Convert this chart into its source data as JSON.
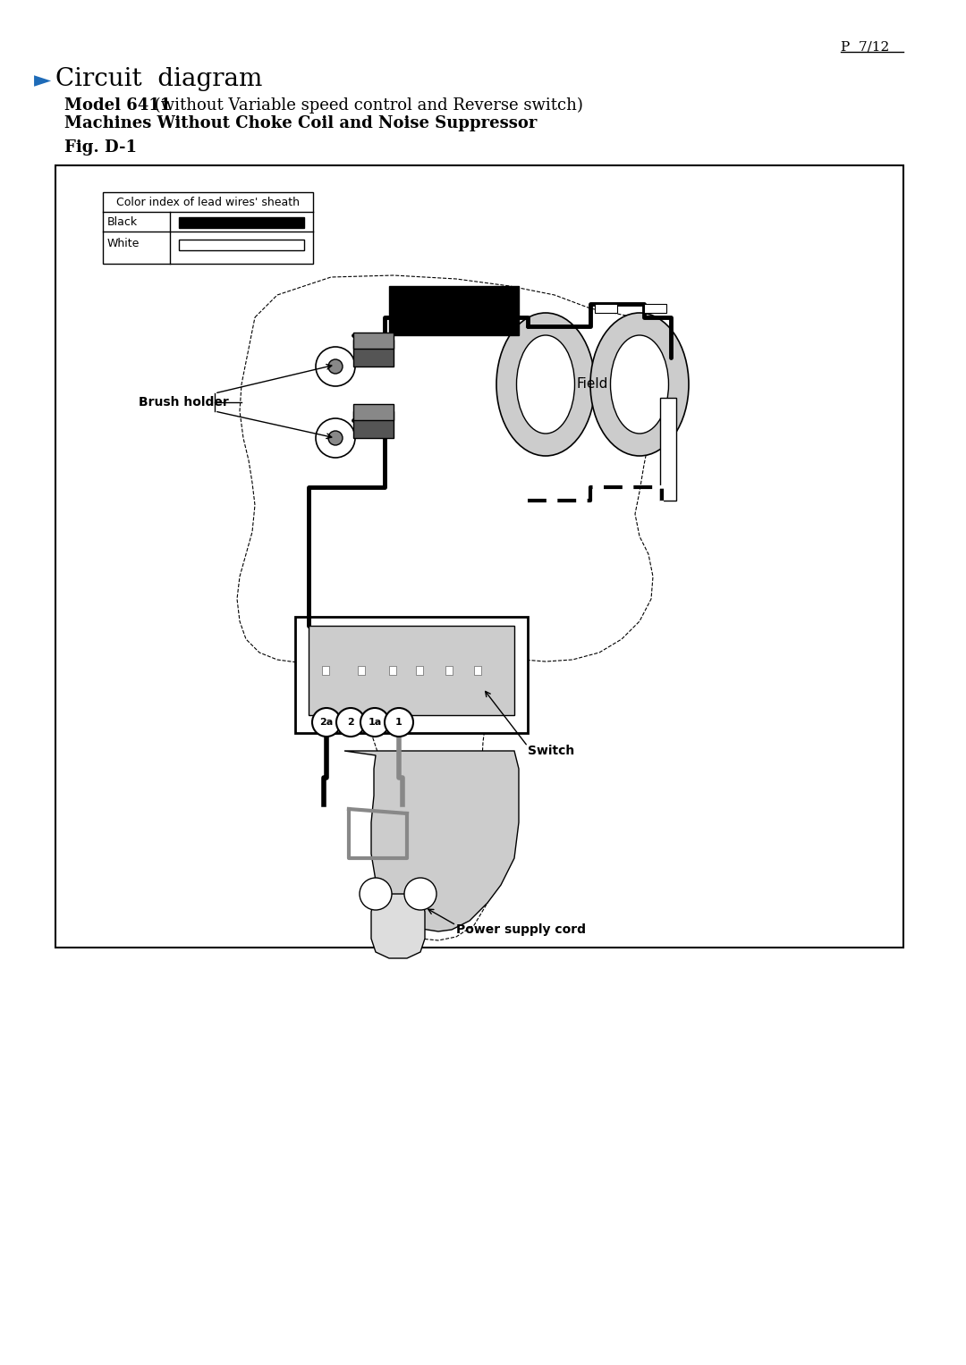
{
  "page_ref": "P  7/12",
  "title_arrow": "►",
  "title_arrow_color": "#1e6bb8",
  "title_text": "Circuit  diagram",
  "subtitle1_bold": "Model 6411",
  "subtitle1_normal": " (without Variable speed control and Reverse switch)",
  "subtitle2": "Machines Without Choke Coil and Noise Suppressor",
  "fig_label": "Fig. D-1",
  "legend_title": "Color index of lead wires' sheath",
  "legend_black": "Black",
  "legend_white": "White",
  "label_brush_holder": "Brush holder",
  "label_field": "Field",
  "label_switch": "Switch",
  "label_power": "Power supply cord",
  "bg_color": "#ffffff",
  "box_bg": "#f5f5f5",
  "diagram_border": "#000000"
}
